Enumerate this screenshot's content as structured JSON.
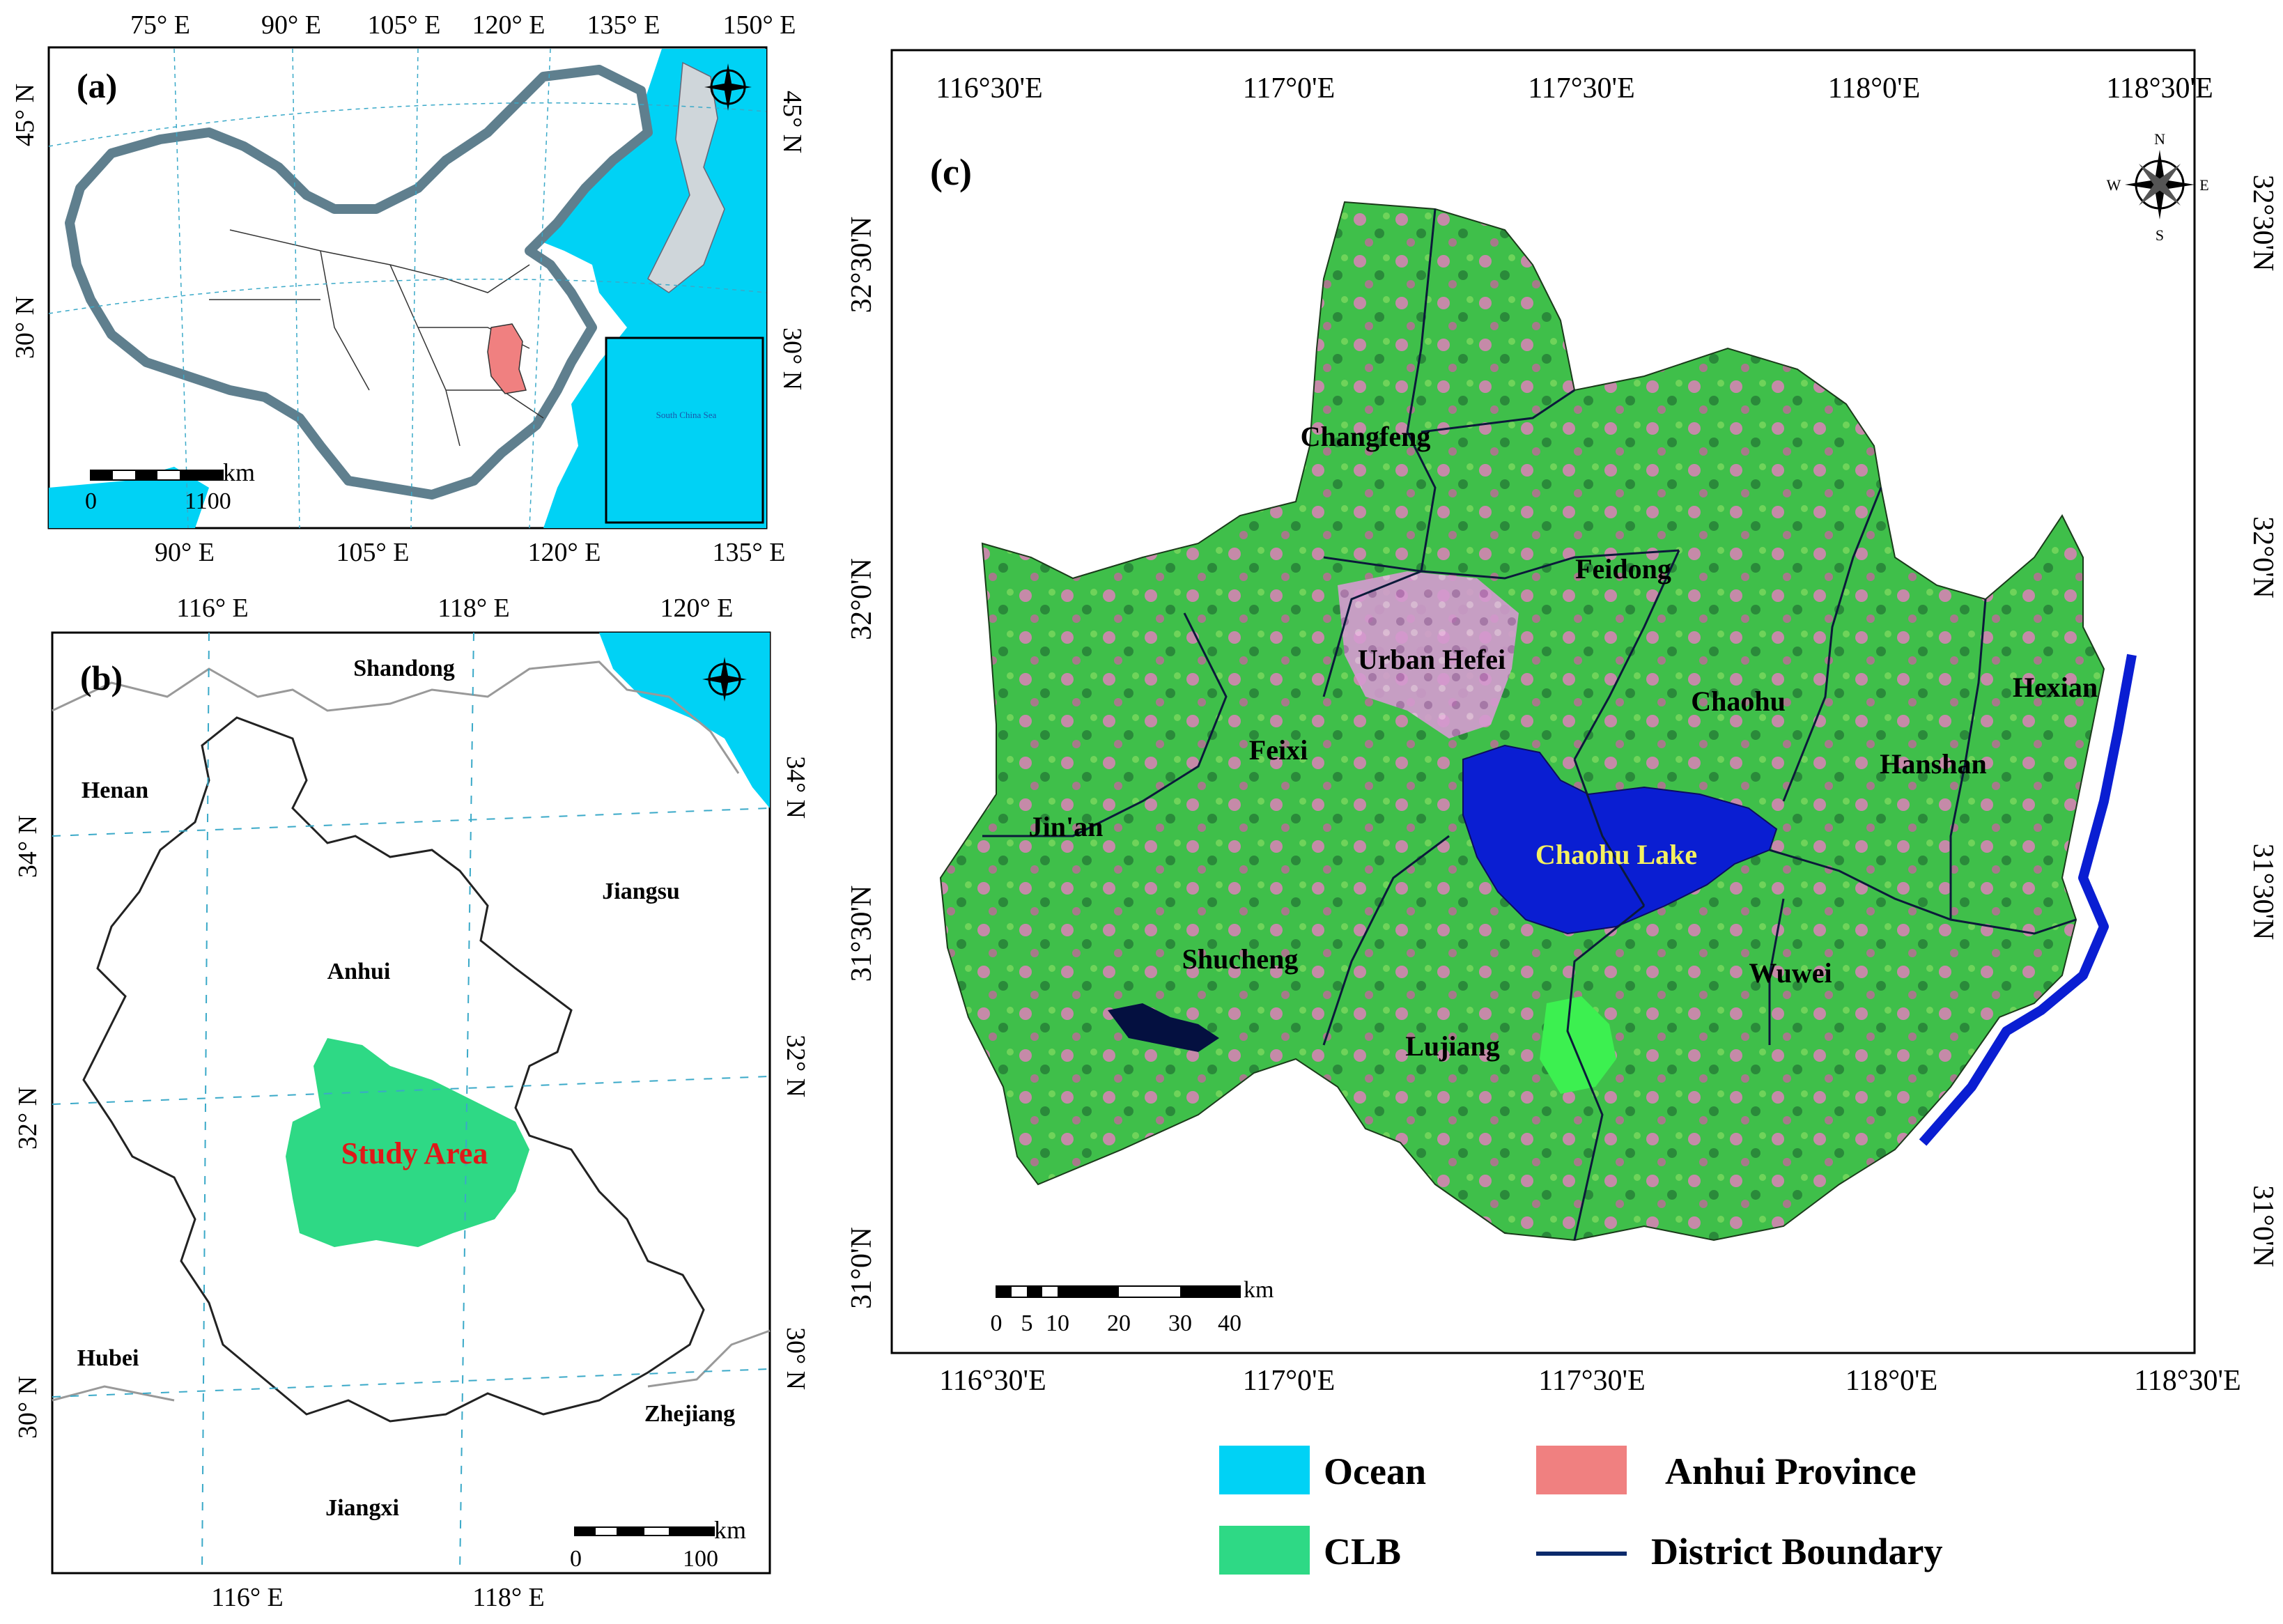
{
  "panel_a": {
    "label": "(a)",
    "top_ticks": [
      "75° E",
      "90° E",
      "105° E",
      "120° E",
      "135° E",
      "150° E"
    ],
    "bottom_ticks": [
      "90° E",
      "105° E",
      "120° E",
      "135° E"
    ],
    "left_ticks": [
      "45° N",
      "30° N"
    ],
    "right_ticks": [
      "45° N",
      "30° N"
    ],
    "scale": {
      "unit": "km",
      "start": "0",
      "end": "1100"
    },
    "inset_label": "South China Sea",
    "ocean_color": "#00d2f5",
    "province_color": "#f08080"
  },
  "panel_b": {
    "label": "(b)",
    "top_ticks": [
      "116° E",
      "118° E",
      "120° E"
    ],
    "bottom_ticks": [
      "116° E",
      "118° E"
    ],
    "left_ticks": [
      "34° N",
      "32° N",
      "30° N"
    ],
    "right_ticks": [
      "34° N",
      "32° N",
      "30° N"
    ],
    "places": [
      "Shandong",
      "Henan",
      "Jiangsu",
      "Anhui",
      "Hubei",
      "Zhejiang",
      "Jiangxi"
    ],
    "study_area": "Study Area",
    "study_color": "#2ed985",
    "scale": {
      "unit": "km",
      "start": "0",
      "end": "100"
    }
  },
  "panel_c": {
    "label": "(c)",
    "top_ticks": [
      "116°30'E",
      "117°0'E",
      "117°30'E",
      "118°0'E",
      "118°30'E"
    ],
    "bottom_ticks": [
      "116°30'E",
      "117°0'E",
      "117°30'E",
      "118°0'E",
      "118°30'E"
    ],
    "left_ticks": [
      "32°30'N",
      "32°0'N",
      "31°30'N",
      "31°0'N"
    ],
    "right_ticks": [
      "32°30'N",
      "32°0'N",
      "31°30'N",
      "31°0'N"
    ],
    "districts": [
      "Changfeng",
      "Feidong",
      "Urban Hefei",
      "Feixi",
      "Chaohu",
      "Hexian",
      "Hanshan",
      "Jin'an",
      "Shucheng",
      "Lujiang",
      "Wuwei"
    ],
    "lake": "Chaohu Lake",
    "lake_color": "#0a1ed2",
    "scale": {
      "unit": "km",
      "ticks": [
        "0",
        "5",
        "10",
        "20",
        "30",
        "40"
      ]
    },
    "compass": {
      "n": "N",
      "s": "S",
      "e": "E",
      "w": "W"
    }
  },
  "legend": [
    {
      "label": "Ocean",
      "color": "#00d2f5",
      "kind": "box"
    },
    {
      "label": "Anhui Province",
      "color": "#f08080",
      "kind": "box"
    },
    {
      "label": "CLB",
      "color": "#2ed985",
      "kind": "box"
    },
    {
      "label": "District Boundary",
      "color": "#0b2a6b",
      "kind": "line"
    }
  ]
}
